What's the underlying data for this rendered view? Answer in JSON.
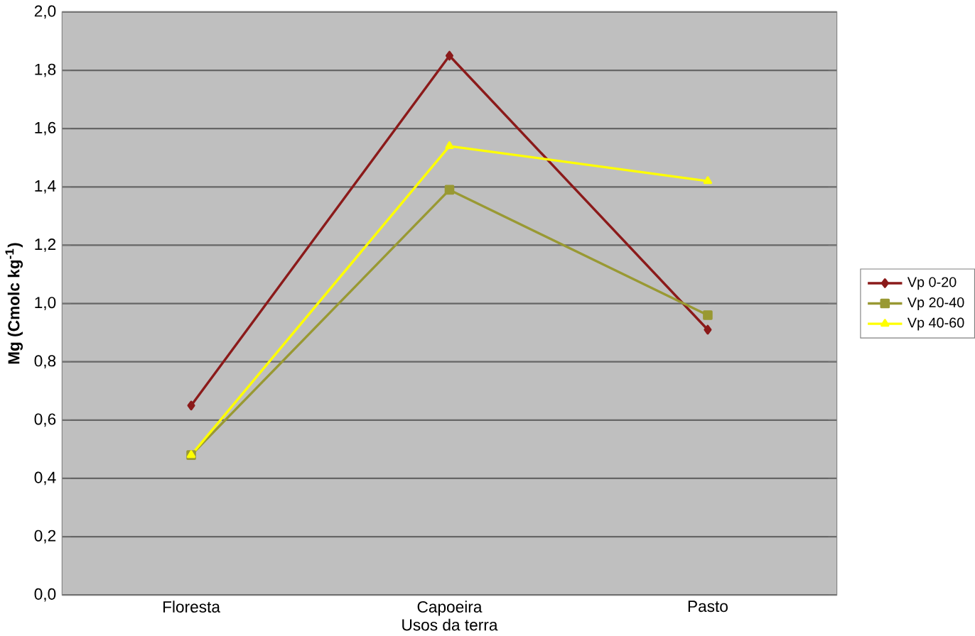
{
  "chart_data": {
    "type": "line",
    "xlabel": "Usos da terra",
    "ylabel": "Mg (Cmolc kg$^{-1}$)",
    "categories": [
      "Floresta",
      "Capoeira",
      "Pasto"
    ],
    "series": [
      {
        "name": "Vp 0-20",
        "color": "#8b1a1a",
        "values": [
          0.65,
          1.85,
          0.91
        ],
        "marker": "diamond"
      },
      {
        "name": "Vp 20-40",
        "color": "#999933",
        "values": [
          0.48,
          1.39,
          0.96
        ],
        "marker": "square"
      },
      {
        "name": "Vp 40-60",
        "color": "#ffff00",
        "values": [
          0.48,
          1.54,
          1.42
        ],
        "marker": "triangle"
      }
    ],
    "ylim": [
      0,
      2
    ],
    "yticks": [
      {
        "value": 0,
        "label": "0,0"
      },
      {
        "value": 0.2,
        "label": "0,2"
      },
      {
        "value": 0.4,
        "label": "0,4"
      },
      {
        "value": 0.6,
        "label": "0,6"
      },
      {
        "value": 0.8,
        "label": "0,8"
      },
      {
        "value": 1.0,
        "label": "1,0"
      },
      {
        "value": 1.2,
        "label": "1,2"
      },
      {
        "value": 1.4,
        "label": "1,4"
      },
      {
        "value": 1.6,
        "label": "1,6"
      },
      {
        "value": 1.8,
        "label": "1,8"
      },
      {
        "value": 2.0,
        "label": "2,0"
      }
    ],
    "grid": "y",
    "legend": "right",
    "line_style": "solid"
  }
}
